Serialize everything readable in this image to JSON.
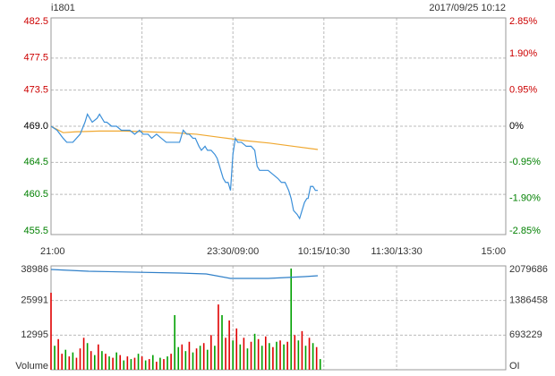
{
  "chart_data": [
    {
      "type": "line",
      "title": "i1801",
      "timestamp": "2017/09/25 10:12",
      "xlim": [
        0,
        375
      ],
      "xticks": [
        {
          "value": 0,
          "label": "21:00"
        },
        {
          "value": 150,
          "label": "23:30/09:00"
        },
        {
          "value": 225,
          "label": "10:15/10:30"
        },
        {
          "value": 285,
          "label": "11:30/13:30"
        },
        {
          "value": 375,
          "label": "15:00"
        }
      ],
      "xgrid": [
        75,
        150,
        225,
        285
      ],
      "ylim": [
        455.5,
        482.5
      ],
      "yticks": [
        482.5,
        477.5,
        473.5,
        {
          "value": 469,
          "label": "469.0"
        },
        464.5,
        460.5,
        455.5
      ],
      "y2lim": [
        -2.85,
        2.85
      ],
      "y2ticks": [
        {
          "value": 2.85,
          "label": "2.85%"
        },
        {
          "value": 1.9,
          "label": "1.90%"
        },
        {
          "value": 0.95,
          "label": "0.95%"
        },
        {
          "value": 0,
          "label": "0%"
        },
        {
          "value": -0.95,
          "label": "-0.95%"
        },
        {
          "value": -1.9,
          "label": "-1.90%"
        },
        {
          "value": -2.85,
          "label": "-2.85%"
        }
      ],
      "up_color": "#cc0000",
      "down_color": "#008000",
      "series": [
        {
          "color": "#f0a830",
          "x": [
            0,
            10,
            20,
            40,
            60,
            80,
            100,
            120,
            140,
            160,
            180,
            200,
            220
          ],
          "values": [
            469,
            468.2,
            468.3,
            468.4,
            468.4,
            468.3,
            468.2,
            468,
            467.6,
            467.2,
            466.9,
            466.5,
            466.1
          ]
        },
        {
          "color": "#3a8fd9",
          "x": [
            0,
            5,
            10,
            13,
            18,
            24,
            28,
            30,
            34,
            38,
            40,
            44,
            46,
            50,
            54,
            58,
            61,
            65,
            69,
            73,
            76,
            80,
            83,
            87,
            91,
            95,
            98,
            102,
            106,
            109,
            112,
            114,
            117,
            119,
            122,
            124,
            127,
            129,
            132,
            135,
            137,
            139,
            141,
            142,
            144,
            146,
            148,
            150,
            152,
            154,
            157,
            161,
            165,
            168,
            170,
            172,
            176,
            179,
            183,
            187,
            190,
            193,
            196,
            198,
            200,
            203,
            205,
            207,
            209,
            211,
            212,
            214,
            216,
            218,
            220
          ],
          "values": [
            469,
            468.5,
            467.5,
            467,
            467,
            468,
            469.5,
            470.5,
            469.5,
            470,
            470.5,
            469.5,
            469.5,
            469,
            469,
            468.5,
            468.5,
            468.5,
            468,
            468.5,
            468,
            468,
            467.5,
            468,
            467.5,
            467,
            467,
            467,
            467,
            468.5,
            468,
            468,
            467.5,
            467.5,
            466.5,
            466,
            466.5,
            466,
            466,
            465.5,
            465,
            464,
            463,
            462.5,
            462,
            462,
            461,
            465.5,
            467.5,
            467,
            467,
            466.5,
            466.5,
            466,
            464,
            463.5,
            463.5,
            463.5,
            463,
            462.5,
            462,
            462,
            461,
            460,
            458.5,
            458,
            457.5,
            458.5,
            459.5,
            460,
            460,
            461.5,
            461.5,
            461,
            461
          ]
        }
      ]
    },
    {
      "type": "bar",
      "xlim": [
        0,
        375
      ],
      "xgrid": [
        75,
        150,
        225,
        285
      ],
      "ylim": [
        0,
        38986
      ],
      "yticks": [
        38986,
        25991,
        12995,
        {
          "value": 0,
          "label": "Volume"
        }
      ],
      "y2lim": [
        0,
        2079686
      ],
      "y2ticks": [
        2079686,
        1386458,
        693229,
        {
          "value": 0,
          "label": "OI"
        }
      ],
      "series": [
        {
          "color": "#e00000",
          "x": [
            0,
            6,
            9,
            15,
            21,
            24,
            27,
            33,
            39,
            45,
            51,
            57,
            63,
            69,
            75,
            81,
            87,
            93,
            99,
            108,
            114,
            120,
            126,
            132,
            138,
            144,
            147,
            153,
            159,
            165,
            171,
            177,
            183,
            189,
            195,
            201,
            207,
            213,
            219
          ],
          "values": [
            28900,
            11500,
            6000,
            5000,
            4500,
            8000,
            12000,
            7000,
            9500,
            6000,
            4500,
            5500,
            5000,
            4500,
            5000,
            4000,
            3000,
            4000,
            6000,
            9500,
            10500,
            8000,
            10000,
            13000,
            24500,
            12000,
            18500,
            15500,
            12000,
            10500,
            11500,
            12500,
            8500,
            11000,
            10500,
            13000,
            14500,
            12000,
            8500
          ]
        },
        {
          "color": "#00a000",
          "x": [
            3,
            12,
            18,
            30,
            36,
            42,
            48,
            54,
            60,
            66,
            72,
            78,
            84,
            90,
            96,
            102,
            105,
            111,
            117,
            123,
            129,
            135,
            141,
            150,
            156,
            162,
            168,
            174,
            180,
            186,
            192,
            198,
            204,
            210,
            216,
            222
          ],
          "values": [
            9000,
            7500,
            6500,
            10000,
            5500,
            7000,
            5000,
            6500,
            3500,
            4000,
            6000,
            3500,
            5500,
            4500,
            5000,
            20500,
            8500,
            7000,
            6500,
            9000,
            7500,
            9000,
            20500,
            11000,
            9500,
            8000,
            13500,
            9000,
            10000,
            10500,
            9500,
            38000,
            11000,
            9000,
            10000,
            4000
          ]
        },
        {
          "type": "line",
          "axis": "y2",
          "color": "#2f7fc8",
          "x": [
            0,
            31,
            106,
            128,
            148,
            179,
            209,
            220
          ],
          "values": [
            2008000,
            1972000,
            1936000,
            1918000,
            1829000,
            1829000,
            1864000,
            1882000
          ]
        }
      ]
    }
  ]
}
